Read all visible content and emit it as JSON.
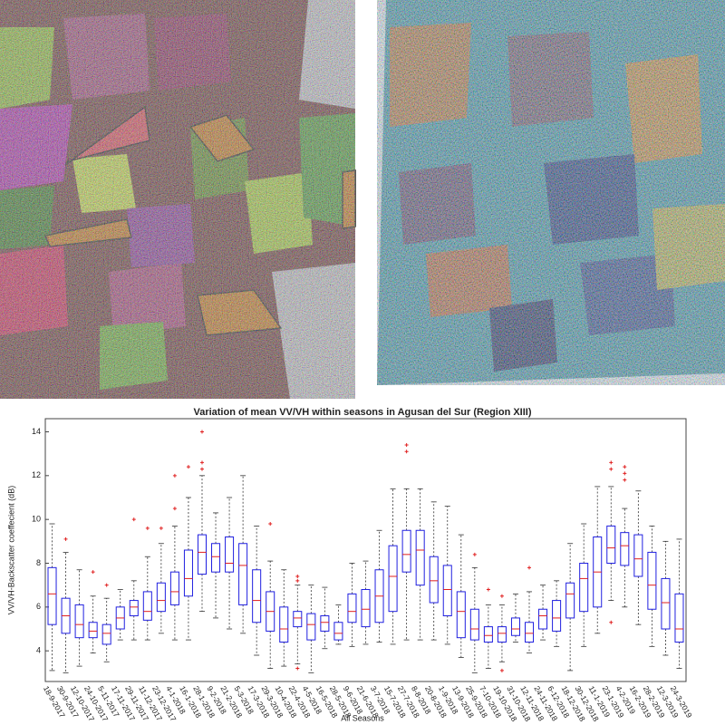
{
  "chart_data": {
    "type": "box",
    "title": "Variation of mean VV/VH within seasons in Agusan del Sur (Region XIII)",
    "xlabel": "All Seasons",
    "ylabel": "VV/VH-Backscatter coeffecient (dB)",
    "categories": [
      "18-9-2017",
      "30-9-2017",
      "12-10-2017",
      "24-10-2017",
      "5-11-2017",
      "17-11-2017",
      "29-11-2017",
      "11-12-2017",
      "23-12-2017",
      "4-1-2018",
      "16-1-2018",
      "28-1-2018",
      "9-2-2018",
      "21-2-2018",
      "5-3-2018",
      "17-3-2018",
      "29-3-2018",
      "10-4-2018",
      "22-4-2018",
      "4-5-2018",
      "16-5-2018",
      "28-5-2018",
      "9-6-2018",
      "21-6-2018",
      "3-7-2018",
      "15-7-2018",
      "27-7-2018",
      "8-8-2018",
      "20-8-2018",
      "1-9-2018",
      "13-9-2018",
      "25-9-2018",
      "7-10-2018",
      "19-10-2018",
      "31-10-2018",
      "12-11-2018",
      "24-11-2018",
      "6-12-2018",
      "18-12-2018",
      "30-12-2018",
      "11-1-2019",
      "23-1-2019",
      "4-2-2019",
      "16-2-2019",
      "28-2-2019",
      "12-3-2019",
      "24-3-2019"
    ],
    "whisker_low": [
      3.1,
      3.0,
      3.3,
      3.9,
      3.5,
      4.5,
      4.5,
      4.5,
      4.8,
      4.5,
      4.5,
      5.8,
      5.5,
      5.0,
      4.8,
      3.8,
      3.2,
      3.3,
      3.4,
      3.0,
      4.1,
      4.3,
      4.2,
      4.3,
      4.4,
      4.3,
      4.5,
      4.5,
      4.5,
      4.3,
      3.7,
      3.0,
      3.2,
      3.5,
      4.4,
      3.9,
      4.5,
      4.2,
      3.1,
      4.2,
      4.8,
      6.3,
      6.0,
      5.2,
      4.2,
      3.8,
      3.2
    ],
    "q1": [
      5.2,
      4.8,
      4.6,
      4.6,
      4.3,
      5.0,
      5.6,
      5.4,
      5.8,
      6.1,
      6.5,
      7.5,
      7.6,
      7.6,
      6.1,
      5.3,
      4.9,
      4.4,
      5.1,
      4.5,
      4.9,
      4.5,
      5.3,
      5.1,
      5.3,
      5.8,
      7.6,
      7.0,
      6.2,
      5.6,
      4.6,
      4.5,
      4.4,
      4.4,
      4.7,
      4.4,
      5.0,
      4.9,
      5.5,
      5.8,
      6.0,
      8.0,
      7.9,
      7.4,
      5.9,
      5.0,
      4.4
    ],
    "median": [
      6.6,
      5.6,
      5.2,
      4.9,
      4.8,
      5.5,
      6.0,
      5.8,
      6.3,
      6.7,
      7.3,
      8.5,
      8.3,
      8.0,
      7.9,
      6.3,
      5.8,
      5.0,
      5.5,
      5.2,
      5.3,
      4.8,
      5.8,
      5.9,
      6.5,
      7.4,
      8.4,
      8.6,
      7.2,
      6.8,
      5.8,
      5.0,
      4.7,
      4.8,
      5.0,
      4.8,
      5.6,
      5.5,
      6.6,
      7.3,
      7.6,
      8.7,
      8.8,
      8.2,
      7.0,
      6.2,
      5.0
    ],
    "q3": [
      7.8,
      6.4,
      6.1,
      5.3,
      5.2,
      6.0,
      6.3,
      6.7,
      7.1,
      7.6,
      8.6,
      9.3,
      8.9,
      9.2,
      8.9,
      7.7,
      6.7,
      6.0,
      5.8,
      5.7,
      5.6,
      5.3,
      6.6,
      6.8,
      7.7,
      8.8,
      9.5,
      9.5,
      8.3,
      7.9,
      6.7,
      5.9,
      5.1,
      5.1,
      5.5,
      5.3,
      5.9,
      6.3,
      7.1,
      8.0,
      9.2,
      9.7,
      9.4,
      9.3,
      8.5,
      7.3,
      6.6
    ],
    "whisker_high": [
      9.8,
      8.5,
      7.7,
      6.5,
      6.4,
      6.8,
      7.2,
      8.3,
      8.9,
      9.7,
      11.0,
      12.0,
      10.3,
      11.0,
      12.0,
      9.7,
      8.1,
      7.7,
      7.0,
      7.0,
      6.9,
      6.1,
      8.0,
      8.1,
      9.5,
      11.4,
      11.4,
      11.4,
      10.8,
      10.6,
      9.3,
      7.8,
      6.1,
      6.1,
      6.6,
      6.7,
      7.0,
      7.2,
      8.9,
      9.8,
      11.5,
      11.5,
      10.5,
      11.3,
      9.7,
      9.0,
      9.1
    ],
    "outliers": [
      [],
      [
        9.1
      ],
      [],
      [
        7.6
      ],
      [
        7.0
      ],
      [],
      [
        10.0
      ],
      [
        9.6
      ],
      [
        9.6
      ],
      [
        10.5,
        12.0
      ],
      [
        12.4
      ],
      [
        12.3,
        12.6,
        14.0
      ],
      [],
      [],
      [],
      [],
      [
        9.8
      ],
      [],
      [
        3.2,
        7.2,
        7.4
      ],
      [],
      [],
      [],
      [],
      [],
      [],
      [],
      [
        13.1,
        13.4
      ],
      [],
      [],
      [],
      [],
      [
        8.4
      ],
      [
        6.8
      ],
      [
        3.1,
        6.5
      ],
      [],
      [
        7.8
      ],
      [],
      [],
      [],
      [],
      [],
      [
        5.3,
        12.3,
        12.6
      ],
      [
        11.8,
        12.1,
        12.4
      ],
      [],
      [],
      [],
      []
    ],
    "box_color": "#2020e0",
    "median_color": "#e02020",
    "outlier_color": "#e02020",
    "whisker_color": "#333333",
    "ylim": [
      2.6,
      14.6
    ],
    "yticks": [
      4,
      6,
      8,
      10,
      12,
      14
    ]
  }
}
